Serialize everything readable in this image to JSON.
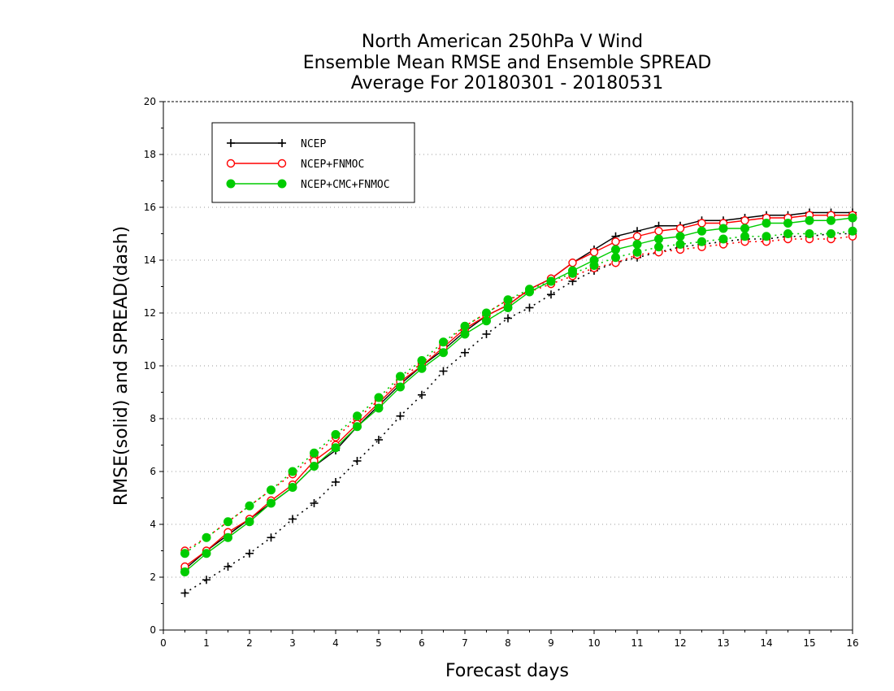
{
  "chart_data": {
    "type": "line",
    "title": [
      "North American 250hPa V Wind",
      "Ensemble Mean RMSE and Ensemble SPREAD",
      "Average For 20180301 - 20180531"
    ],
    "xlabel": "Forecast days",
    "ylabel": "RMSE(solid) and SPREAD(dash)",
    "xlim": [
      0,
      16
    ],
    "ylim": [
      0,
      20
    ],
    "xticks": [
      0,
      1,
      2,
      3,
      4,
      5,
      6,
      7,
      8,
      9,
      10,
      11,
      12,
      13,
      14,
      15,
      16
    ],
    "yticks": [
      0,
      2,
      4,
      6,
      8,
      10,
      12,
      14,
      16,
      18,
      20
    ],
    "grid": "horizontal dotted",
    "legend_position": "top-left",
    "x": [
      0.5,
      1,
      1.5,
      2,
      2.5,
      3,
      3.5,
      4,
      4.5,
      5,
      5.5,
      6,
      6.5,
      7,
      7.5,
      8,
      8.5,
      9,
      9.5,
      10,
      10.5,
      11,
      11.5,
      12,
      12.5,
      13,
      13.5,
      14,
      14.5,
      15,
      15.5,
      16
    ],
    "series": [
      {
        "name": "NCEP",
        "color": "#000000",
        "marker": "plus",
        "rmse": [
          2.3,
          3.0,
          3.6,
          4.2,
          4.8,
          5.4,
          6.2,
          6.8,
          7.7,
          8.5,
          9.3,
          10.0,
          10.6,
          11.3,
          11.9,
          12.3,
          12.9,
          13.3,
          13.9,
          14.4,
          14.9,
          15.1,
          15.3,
          15.3,
          15.5,
          15.5,
          15.6,
          15.7,
          15.7,
          15.8,
          15.8,
          15.8
        ],
        "spread": [
          1.4,
          1.9,
          2.4,
          2.9,
          3.5,
          4.2,
          4.8,
          5.6,
          6.4,
          7.2,
          8.1,
          8.9,
          9.8,
          10.5,
          11.2,
          11.8,
          12.2,
          12.7,
          13.2,
          13.6,
          13.9,
          14.1,
          14.3,
          14.5,
          14.6,
          14.7,
          14.8,
          14.8,
          14.9,
          14.9,
          15.0,
          15.0
        ]
      },
      {
        "name": "NCEP+FNMOC",
        "color": "#ff0000",
        "marker": "open-circle",
        "rmse": [
          2.4,
          3.0,
          3.7,
          4.2,
          4.9,
          5.5,
          6.4,
          7.0,
          7.8,
          8.6,
          9.4,
          10.0,
          10.7,
          11.4,
          11.9,
          12.3,
          12.9,
          13.3,
          13.9,
          14.3,
          14.7,
          14.9,
          15.1,
          15.2,
          15.4,
          15.4,
          15.5,
          15.6,
          15.6,
          15.7,
          15.7,
          15.7
        ],
        "spread": [
          3.0,
          3.5,
          4.1,
          4.7,
          5.3,
          5.9,
          6.6,
          7.3,
          8.0,
          8.7,
          9.5,
          10.1,
          10.8,
          11.5,
          12.0,
          12.5,
          12.8,
          13.1,
          13.4,
          13.7,
          13.9,
          14.2,
          14.3,
          14.4,
          14.5,
          14.6,
          14.7,
          14.7,
          14.8,
          14.8,
          14.8,
          14.9
        ]
      },
      {
        "name": "NCEP+CMC+FNMOC",
        "color": "#00cc00",
        "marker": "filled-circle",
        "rmse": [
          2.2,
          2.9,
          3.5,
          4.1,
          4.8,
          5.4,
          6.2,
          6.9,
          7.7,
          8.4,
          9.2,
          9.9,
          10.5,
          11.2,
          11.7,
          12.2,
          12.8,
          13.2,
          13.6,
          14.0,
          14.4,
          14.6,
          14.8,
          14.9,
          15.1,
          15.2,
          15.2,
          15.4,
          15.4,
          15.5,
          15.5,
          15.6
        ],
        "spread": [
          2.9,
          3.5,
          4.1,
          4.7,
          5.3,
          6.0,
          6.7,
          7.4,
          8.1,
          8.8,
          9.6,
          10.2,
          10.9,
          11.5,
          12.0,
          12.5,
          12.9,
          13.2,
          13.5,
          13.8,
          14.1,
          14.3,
          14.5,
          14.6,
          14.7,
          14.8,
          14.9,
          14.9,
          15.0,
          15.0,
          15.0,
          15.1
        ]
      }
    ]
  }
}
